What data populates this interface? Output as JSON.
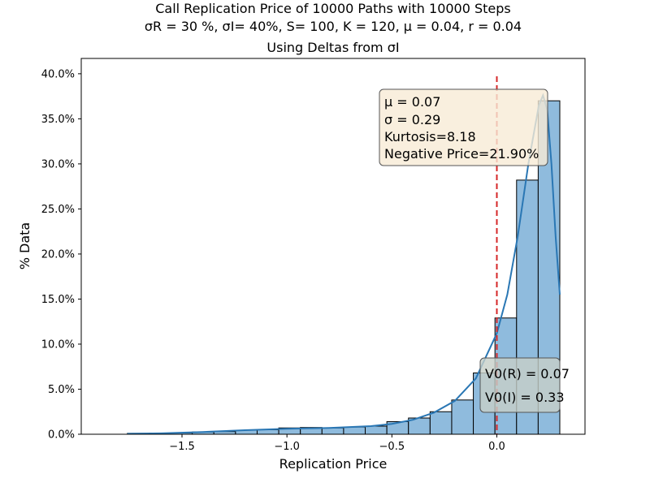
{
  "title_lines": [
    "Call Replication Price of 10000 Paths with 10000 Steps",
    "σR = 30 %, σI= 40%, S= 100, K = 120, μ = 0.04, r = 0.04",
    "Using Deltas from σI"
  ],
  "colors": {
    "bar_fill": "#8fbbdd",
    "bar_edge": "#000000",
    "kde_line": "#2a77b4",
    "zero_line": "#d62728",
    "stats_box_bg": "#f8ebd6",
    "value_box_bg": "#c7cfc8"
  },
  "stats_box": [
    "μ = 0.07",
    "σ = 0.29",
    "Kurtosis=8.18",
    "Negative Price=21.90%"
  ],
  "value_box": [
    "V0(R) = 0.07",
    "V0(I) = 0.33"
  ],
  "chart_data": {
    "type": "bar",
    "subtype": "histogram with kde",
    "xlabel": "Replication Price",
    "ylabel": "% Data",
    "xlim": [
      -1.98,
      0.42
    ],
    "ylim": [
      0,
      41.7
    ],
    "x_ticks": [
      "−1.5",
      "−1.0",
      "−0.5",
      "0.0"
    ],
    "x_tick_values": [
      -1.5,
      -1.0,
      -0.5,
      0.0
    ],
    "y_ticks": [
      "0.0%",
      "5.0%",
      "10.0%",
      "15.0%",
      "20.0%",
      "25.0%",
      "30.0%",
      "35.0%",
      "40.0%"
    ],
    "y_tick_values": [
      0,
      5,
      10,
      15,
      20,
      25,
      30,
      35,
      40
    ],
    "bin_edges": [
      -1.76,
      -1.657,
      -1.554,
      -1.451,
      -1.348,
      -1.245,
      -1.142,
      -1.039,
      -0.936,
      -0.833,
      -0.73,
      -0.627,
      -0.524,
      -0.421,
      -0.318,
      -0.215,
      -0.112,
      -0.009,
      0.094,
      0.197,
      0.3
    ],
    "values": [
      0.1,
      0.12,
      0.15,
      0.25,
      0.3,
      0.45,
      0.5,
      0.7,
      0.75,
      0.7,
      0.8,
      0.9,
      1.4,
      1.8,
      2.5,
      3.8,
      6.8,
      12.9,
      28.2,
      37.0
    ],
    "kde": {
      "x": [
        -1.76,
        -1.6,
        -1.4,
        -1.2,
        -1.0,
        -0.8,
        -0.6,
        -0.5,
        -0.4,
        -0.3,
        -0.2,
        -0.1,
        0.0,
        0.05,
        0.1,
        0.15,
        0.2,
        0.22,
        0.24,
        0.26,
        0.28,
        0.3
      ],
      "y": [
        0.05,
        0.1,
        0.25,
        0.45,
        0.6,
        0.7,
        0.9,
        1.15,
        1.6,
        2.4,
        3.7,
        6.2,
        11.2,
        15.5,
        22.0,
        30.0,
        36.5,
        37.6,
        36.0,
        30.0,
        22.0,
        15.5
      ]
    },
    "vline": {
      "x": 0.0,
      "style": "dashed"
    },
    "grid": false
  }
}
